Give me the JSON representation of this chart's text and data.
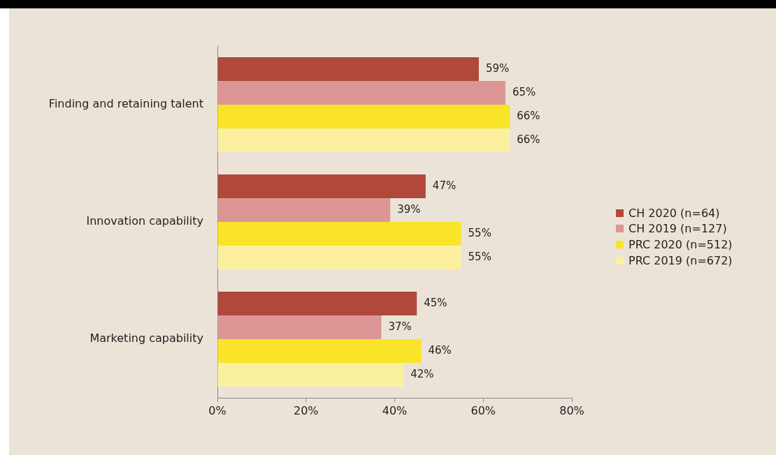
{
  "chart_data": {
    "type": "bar",
    "orientation": "horizontal",
    "categories": [
      "Finding and retaining talent",
      "Innovation capability",
      "Marketing capability"
    ],
    "series": [
      {
        "name": "CH 2020 (n=64)",
        "color": "#b0483c",
        "values": [
          59,
          47,
          45
        ],
        "value_labels": [
          "59%",
          "47%",
          "45%"
        ]
      },
      {
        "name": "CH 2019 (n=127)",
        "color": "#dc9795",
        "values": [
          65,
          39,
          37
        ],
        "value_labels": [
          "65%",
          "39%",
          "37%"
        ]
      },
      {
        "name": "PRC 2020 (n=512)",
        "color": "#f9e42a",
        "values": [
          66,
          55,
          46
        ],
        "value_labels": [
          "66%",
          "55%",
          "46%"
        ]
      },
      {
        "name": "PRC 2019 (n=672)",
        "color": "#fbf0a0",
        "values": [
          66,
          55,
          42
        ],
        "value_labels": [
          "66%",
          "55%",
          "42%"
        ]
      }
    ],
    "xlim": [
      0,
      80
    ],
    "xticks": [
      {
        "value": 0,
        "label": "0%"
      },
      {
        "value": 20,
        "label": "20%"
      },
      {
        "value": 40,
        "label": "40%"
      },
      {
        "value": 60,
        "label": "60%"
      },
      {
        "value": 80,
        "label": "80%"
      }
    ],
    "grid": false,
    "legend": "right"
  }
}
